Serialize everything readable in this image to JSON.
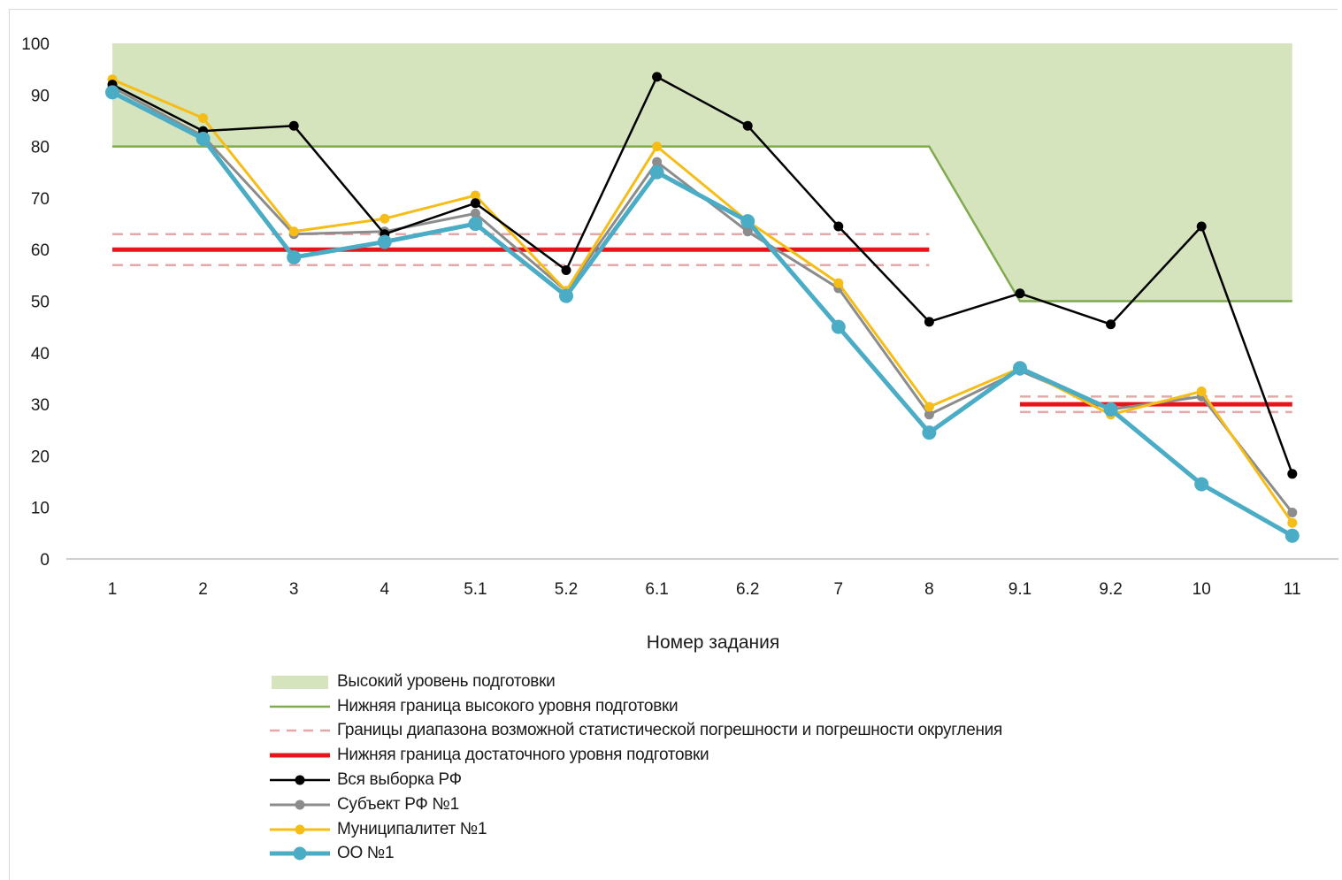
{
  "chart_data": {
    "type": "line",
    "categories": [
      "1",
      "2",
      "3",
      "4",
      "5.1",
      "5.2",
      "6.1",
      "6.2",
      "7",
      "8",
      "9.1",
      "9.2",
      "10",
      "11"
    ],
    "xlabel": "Номер задания",
    "ylabel": "",
    "ylim": [
      0,
      100
    ],
    "yticks": [
      0,
      10,
      20,
      30,
      40,
      50,
      60,
      70,
      80,
      90,
      100
    ],
    "grid": false,
    "legend_position": "bottom",
    "high_level_band": {
      "name": "Высокий уровень подготовки",
      "color": "#d6e4bd",
      "upper": 100,
      "lower": [
        80,
        80,
        80,
        80,
        80,
        80,
        80,
        80,
        80,
        80,
        50,
        50,
        50,
        50
      ]
    },
    "high_level_lower_bound": {
      "name": "Нижняя граница высокого уровня подготовки",
      "color": "#7faa4e"
    },
    "error_range": {
      "name": "Границы диапазона возможной статистической погрешности и погрешности округления",
      "color": "#e5a7a7",
      "segments": [
        {
          "from": "1",
          "to": "8",
          "upper": 63,
          "lower": 57
        },
        {
          "from": "9.1",
          "to": "11",
          "upper": 31.5,
          "lower": 28.5
        }
      ]
    },
    "sufficient_level_bound": {
      "name": "Нижняя граница достаточного уровня подготовки",
      "color": "#e8141c",
      "segments": [
        {
          "from": "1",
          "to": "8",
          "value": 60
        },
        {
          "from": "9.1",
          "to": "11",
          "value": 30
        }
      ]
    },
    "series": [
      {
        "name": "Вся выборка РФ",
        "color": "#000000",
        "values": [
          92,
          83,
          84,
          63,
          69,
          56,
          93.5,
          84,
          64.5,
          46,
          51.5,
          45.5,
          64.5,
          16.5
        ]
      },
      {
        "name": "Субъект РФ №1",
        "color": "#8c8c8c",
        "values": [
          91.5,
          82,
          63,
          63.5,
          67,
          52,
          77,
          63.5,
          52.5,
          28,
          36.5,
          29,
          31.5,
          9
        ]
      },
      {
        "name": "Муниципалитет №1",
        "color": "#f5bd16",
        "values": [
          93,
          85.5,
          63.5,
          66,
          70.5,
          52,
          80,
          65.5,
          53.5,
          29.5,
          37,
          28,
          32.5,
          7
        ]
      },
      {
        "name": "ОО №1",
        "color": "#4bacc6",
        "values": [
          90.5,
          81.5,
          58.5,
          61.5,
          65,
          51,
          75,
          65.5,
          45,
          24.5,
          37,
          29,
          14.5,
          4.5
        ]
      }
    ]
  }
}
